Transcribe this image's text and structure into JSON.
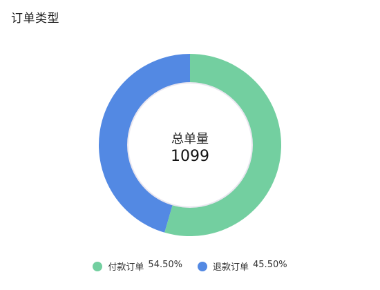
{
  "title": "订单类型",
  "chart_data": {
    "type": "pie",
    "center_label": "总单量",
    "center_value": "1099",
    "series": [
      {
        "name": "付款订单",
        "value": 54.5,
        "label": "54.50%",
        "color": "#73CFA0"
      },
      {
        "name": "退款订单",
        "value": 45.5,
        "label": "45.50%",
        "color": "#5389E3"
      }
    ],
    "legend_position": "bottom"
  }
}
